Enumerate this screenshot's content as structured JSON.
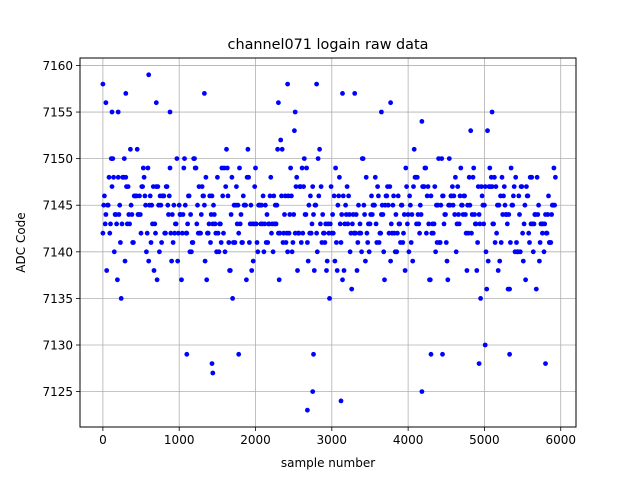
{
  "chart_data": {
    "type": "scatter",
    "title": "channel071 logain raw data",
    "xlabel": "sample number",
    "ylabel": "ADC Code",
    "xlim": [
      -300,
      6200
    ],
    "ylim": [
      7121.2,
      7160.8
    ],
    "xticks": [
      0,
      1000,
      2000,
      3000,
      4000,
      5000,
      6000
    ],
    "yticks": [
      7125,
      7130,
      7135,
      7140,
      7145,
      7150,
      7155,
      7160
    ],
    "xtick_labels": [
      "0",
      "1000",
      "2000",
      "3000",
      "4000",
      "5000",
      "6000"
    ],
    "ytick_labels": [
      "7125",
      "7130",
      "7135",
      "7140",
      "7145",
      "7150",
      "7155",
      "7160"
    ],
    "grid": true,
    "marker_color": "#0000ff",
    "series": [
      {
        "x_range": [
          0,
          5930
        ],
        "n_samples": 5931,
        "central_band": [
          7137,
          7150
        ],
        "typical_values": [
          7139,
          7140,
          7141,
          7142,
          7143,
          7144,
          7145,
          7146,
          7147,
          7148,
          7149
        ],
        "outliers": [
          {
            "x": 0,
            "y": 7158
          },
          {
            "x": 40,
            "y": 7156
          },
          {
            "x": 120,
            "y": 7155
          },
          {
            "x": 200,
            "y": 7155
          },
          {
            "x": 300,
            "y": 7157
          },
          {
            "x": 600,
            "y": 7159
          },
          {
            "x": 700,
            "y": 7156
          },
          {
            "x": 880,
            "y": 7155
          },
          {
            "x": 1330,
            "y": 7157
          },
          {
            "x": 2300,
            "y": 7156
          },
          {
            "x": 2420,
            "y": 7158
          },
          {
            "x": 2520,
            "y": 7155
          },
          {
            "x": 2800,
            "y": 7158
          },
          {
            "x": 3140,
            "y": 7157
          },
          {
            "x": 3300,
            "y": 7157
          },
          {
            "x": 3650,
            "y": 7155
          },
          {
            "x": 3770,
            "y": 7156
          },
          {
            "x": 5100,
            "y": 7155
          },
          {
            "x": 1100,
            "y": 7129
          },
          {
            "x": 1430,
            "y": 7128
          },
          {
            "x": 1440,
            "y": 7127
          },
          {
            "x": 1780,
            "y": 7129
          },
          {
            "x": 2680,
            "y": 7123
          },
          {
            "x": 2750,
            "y": 7125
          },
          {
            "x": 2760,
            "y": 7129
          },
          {
            "x": 3120,
            "y": 7124
          },
          {
            "x": 4180,
            "y": 7125
          },
          {
            "x": 4300,
            "y": 7129
          },
          {
            "x": 4450,
            "y": 7129
          },
          {
            "x": 4930,
            "y": 7128
          },
          {
            "x": 5010,
            "y": 7130
          },
          {
            "x": 5330,
            "y": 7129
          },
          {
            "x": 5800,
            "y": 7128
          }
        ]
      }
    ]
  }
}
